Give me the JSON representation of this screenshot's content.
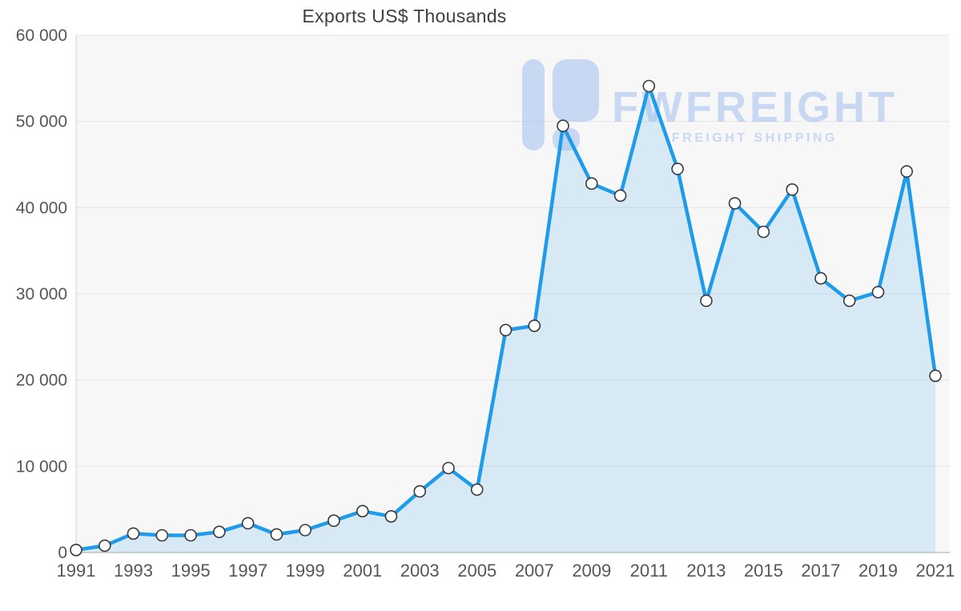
{
  "watermark": {
    "brand": "FWFREIGHT",
    "tagline": "FREIGHT SHIPPING",
    "color": "#a3bfee"
  },
  "chart_data": {
    "type": "area",
    "title": "Exports US$ Thousands",
    "xlabel": "",
    "ylabel": "",
    "x": [
      1991,
      1992,
      1993,
      1994,
      1995,
      1996,
      1997,
      1998,
      1999,
      2000,
      2001,
      2002,
      2003,
      2004,
      2005,
      2006,
      2007,
      2008,
      2009,
      2010,
      2011,
      2012,
      2013,
      2014,
      2015,
      2016,
      2017,
      2018,
      2019,
      2020,
      2021
    ],
    "series": [
      {
        "name": "Exports US$ Thousands",
        "values": [
          300,
          800,
          2200,
          2000,
          2000,
          2400,
          3400,
          2100,
          2600,
          3700,
          4800,
          4200,
          7100,
          9800,
          7300,
          25800,
          26300,
          49500,
          42800,
          41400,
          54100,
          44500,
          29200,
          40500,
          37200,
          42100,
          31800,
          29200,
          30200,
          44200,
          20500
        ]
      }
    ],
    "x_tick_labels": [
      "1991",
      "1993",
      "1995",
      "1997",
      "1999",
      "2001",
      "2003",
      "2005",
      "2007",
      "2009",
      "2011",
      "2013",
      "2015",
      "2017",
      "2019",
      "2021"
    ],
    "y_ticks": [
      0,
      10000,
      20000,
      30000,
      40000,
      50000,
      60000
    ],
    "y_tick_labels": [
      "0",
      "10 000",
      "20 000",
      "30 000",
      "40 000",
      "50 000",
      "60 000"
    ],
    "ylim": [
      0,
      60000
    ],
    "grid": "horizontal",
    "legend_position": "none",
    "colors": {
      "line": "#1e9be9",
      "fill": "rgba(30,155,233,0.15)",
      "plot_bg": "#f7f7f7",
      "grid": "#e3e3e3",
      "axis_line_left": "#d0d0d0",
      "axis_line_bottom": "#a8a8a8",
      "axis_text": "#565656",
      "marker_fill": "#ffffff",
      "marker_stroke": "#3a3a3a"
    }
  }
}
